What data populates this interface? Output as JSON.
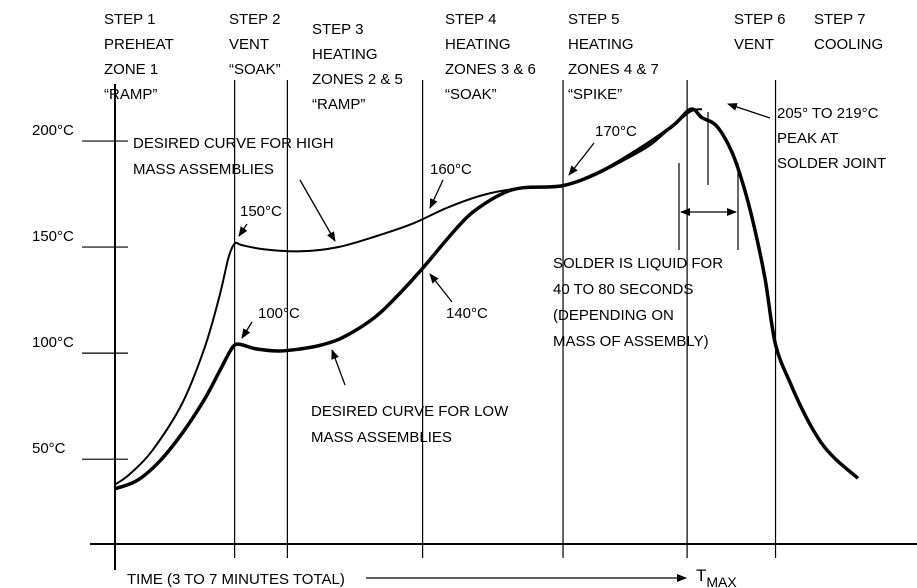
{
  "chart_data": {
    "type": "line",
    "title": "",
    "xlabel": "TIME (3 TO 7 MINUTES TOTAL)",
    "xlabel_end": "T",
    "xlabel_end_subscript": "MAX",
    "ylabel": "",
    "yticks": [
      "50°C",
      "100°C",
      "150°C",
      "200°C"
    ],
    "ytick_values": [
      50,
      100,
      150,
      200
    ],
    "ylim": [
      10,
      250
    ],
    "xlim": [
      0,
      100
    ],
    "steps": [
      {
        "lines": [
          "STEP 1",
          "PREHEAT",
          "ZONE 1",
          "“RAMP”"
        ]
      },
      {
        "lines": [
          "STEP 2",
          "VENT",
          "“SOAK”"
        ]
      },
      {
        "lines": [
          "STEP 3",
          "HEATING",
          "ZONES 2 & 5",
          "“RAMP”"
        ]
      },
      {
        "lines": [
          "STEP 4",
          "HEATING",
          "ZONES 3 & 6",
          "“SOAK”"
        ]
      },
      {
        "lines": [
          "STEP 5",
          "HEATING",
          "ZONES 4 & 7",
          "“SPIKE”"
        ]
      },
      {
        "lines": [
          "STEP 6",
          "VENT"
        ]
      },
      {
        "lines": [
          "STEP 7",
          "COOLING"
        ]
      }
    ],
    "boundaries": [
      16.1,
      23.2,
      41.4,
      60.3,
      77.0,
      88.9
    ],
    "series": [
      {
        "name": "DESIRED CURVE FOR HIGH MASS ASSEMBLIES",
        "x": [
          0,
          2,
          5,
          9,
          12,
          14,
          15.2,
          15.8,
          16.3,
          17,
          20,
          25,
          30,
          35,
          40,
          45,
          50,
          55,
          60.3,
          64,
          68,
          72,
          75,
          77.5,
          79
        ],
        "y": [
          38,
          43,
          54,
          76,
          102,
          126,
          144,
          150,
          152,
          151,
          149,
          148,
          150,
          155,
          161,
          169,
          175,
          178,
          179,
          183,
          190,
          198,
          207,
          214,
          215
        ]
      },
      {
        "name": "DESIRED CURVE FOR LOW MASS ASSEMBLIES",
        "x": [
          0,
          3,
          6,
          9,
          12,
          14,
          15.5,
          16.2,
          17,
          19,
          22,
          25,
          28,
          31,
          35,
          38,
          41.4,
          45,
          48,
          52,
          55,
          60.3,
          65,
          70,
          75,
          77.5,
          79,
          81,
          83,
          84.5,
          86,
          87.5,
          88.9,
          91,
          93,
          95,
          97,
          100
        ],
        "y": [
          36,
          40,
          49,
          62,
          78,
          91,
          101,
          104,
          104,
          102,
          101,
          102,
          104,
          108,
          117,
          127,
          140,
          155,
          166,
          175,
          178,
          179,
          185,
          195,
          207,
          215,
          211,
          207,
          195,
          180,
          160,
          135,
          104,
          85,
          70,
          58,
          50,
          41
        ]
      }
    ],
    "annotations": {
      "high_curve_label": [
        "DESIRED CURVE FOR HIGH",
        "MASS ASSEMBLIES"
      ],
      "low_curve_label": [
        "DESIRED CURVE FOR LOW",
        "MASS ASSEMBLIES"
      ],
      "p150": "150°C",
      "p100": "100°C",
      "p160": "160°C",
      "p140": "140°C",
      "p170": "170°C",
      "peak": [
        "205° TO 219°C",
        "PEAK AT",
        "SOLDER JOINT"
      ],
      "liquid": [
        "SOLDER IS LIQUID FOR",
        "40 TO 80 SECONDS",
        "(DEPENDING ON",
        "MASS OF ASSEMBLY)"
      ]
    },
    "grid": false,
    "legend": "none"
  }
}
